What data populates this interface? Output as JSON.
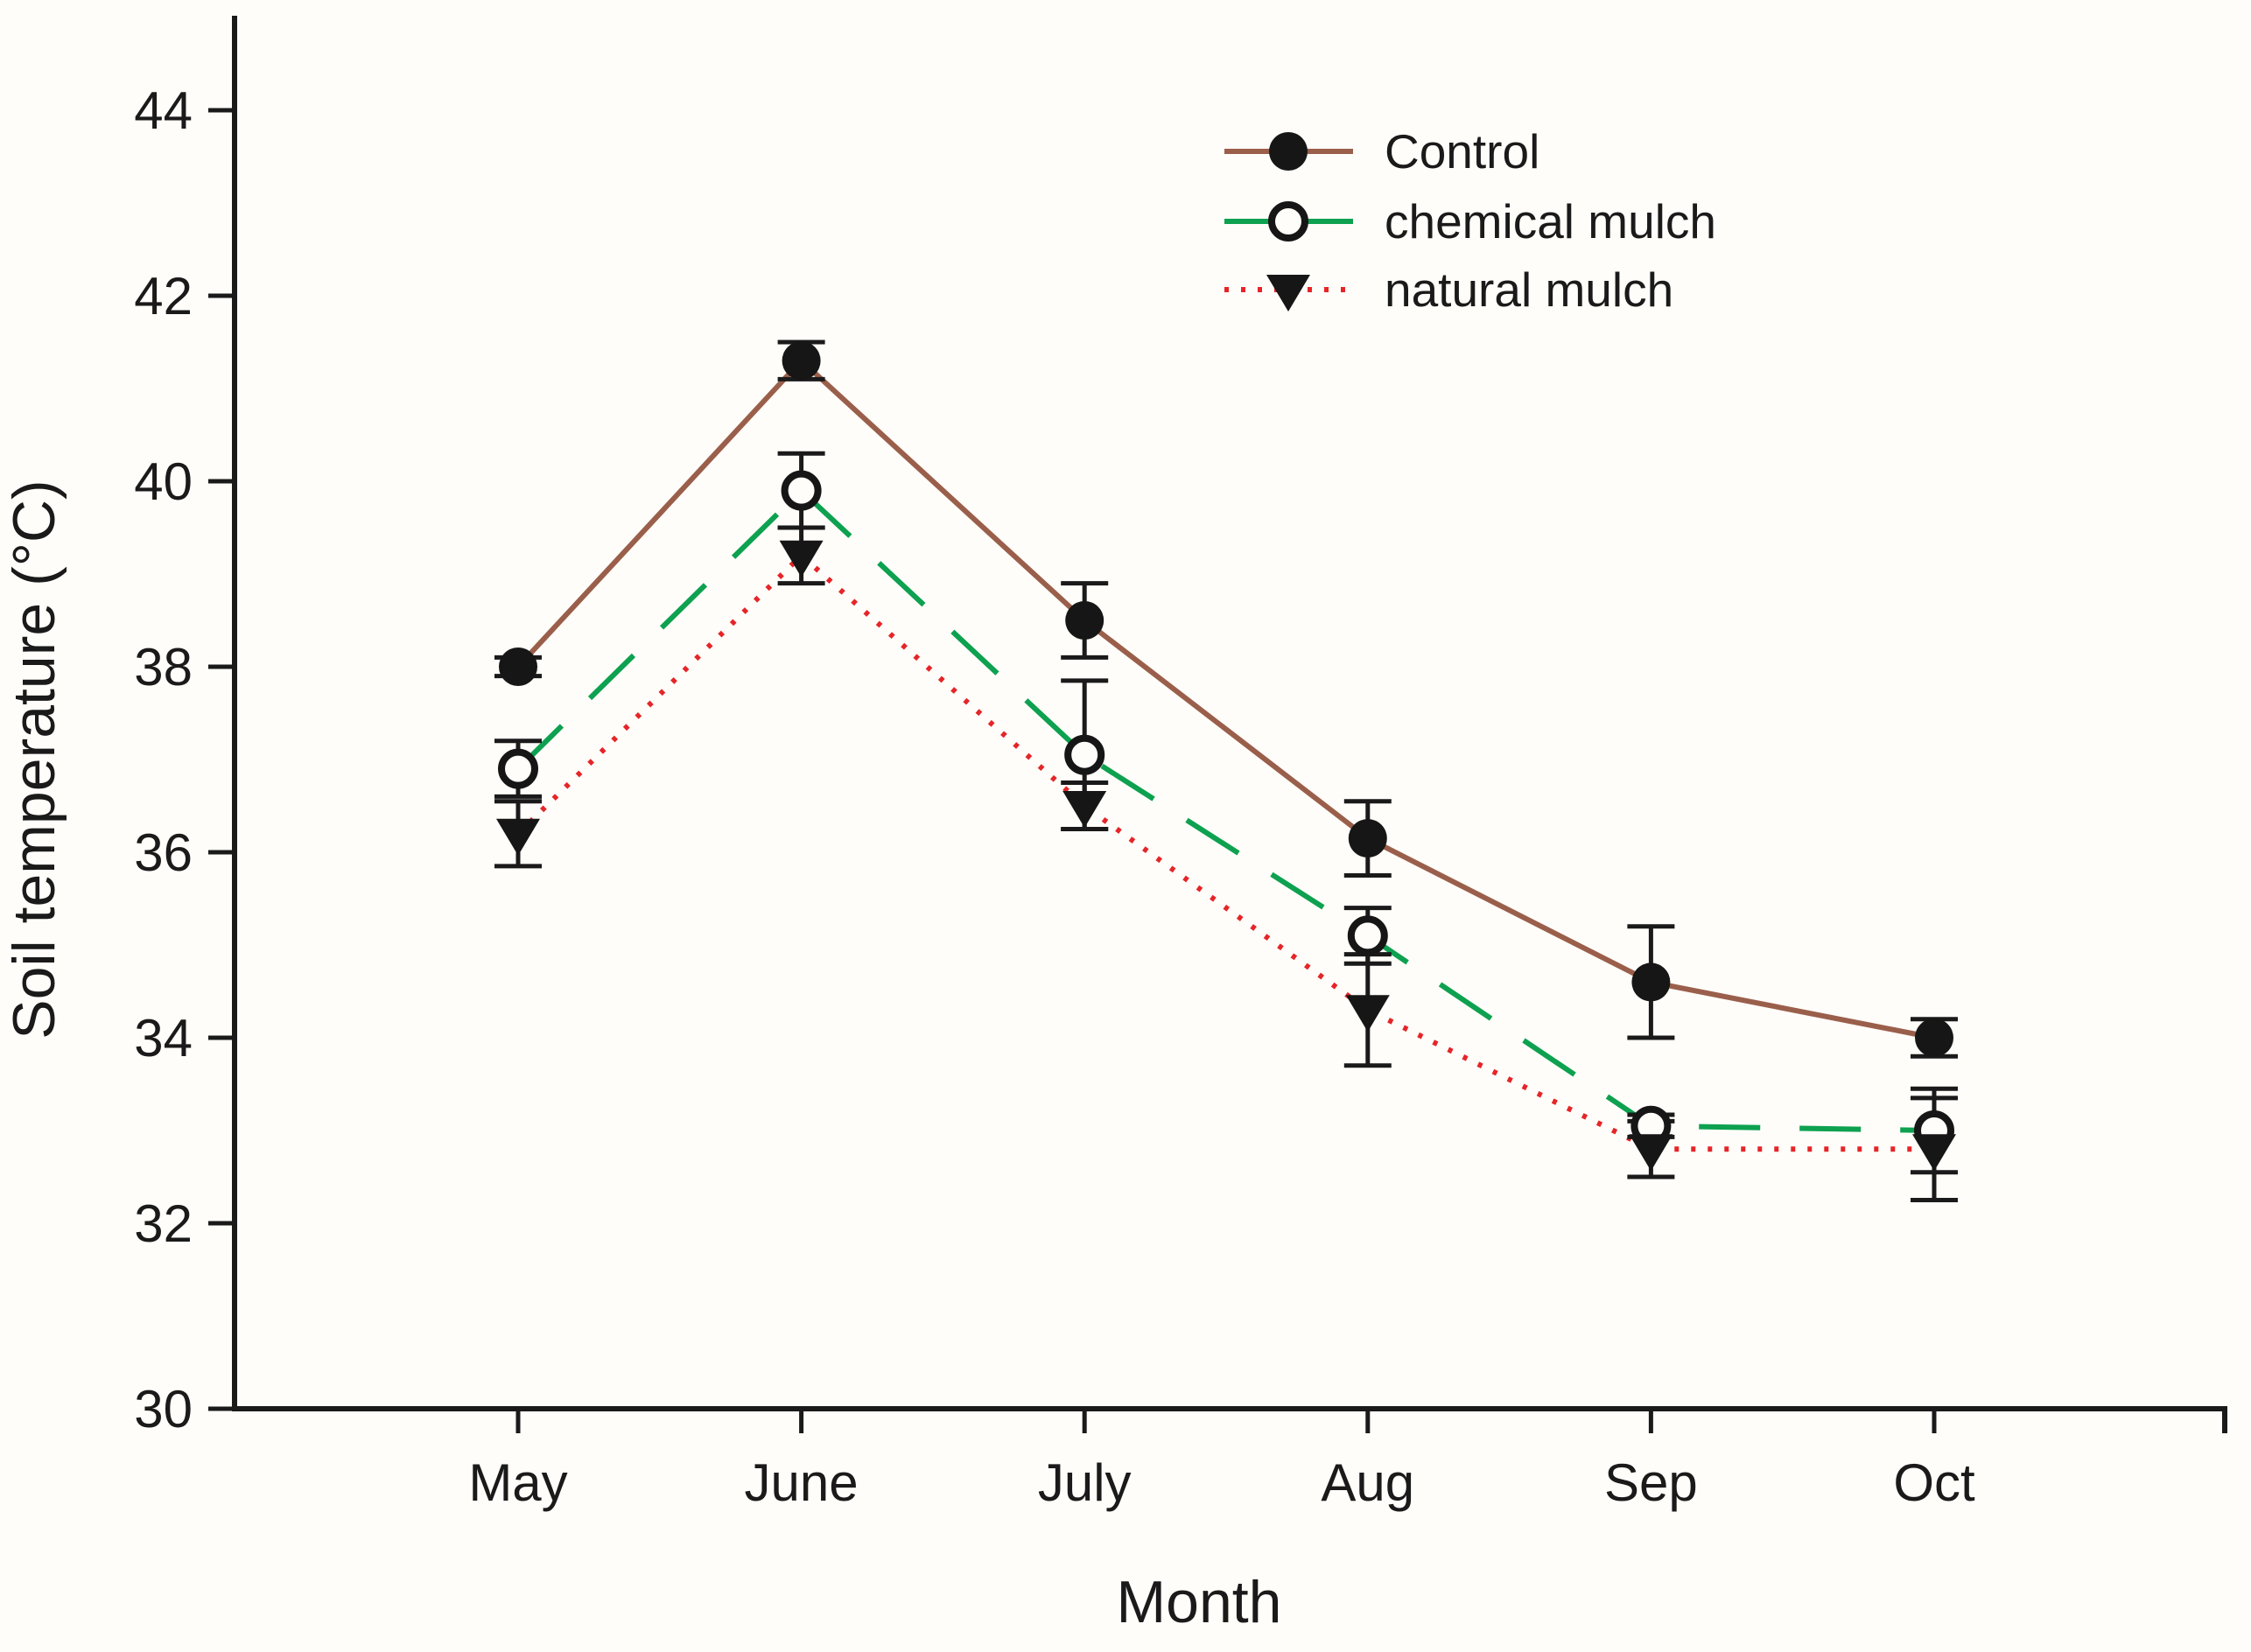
{
  "figure": {
    "background_color": "#fffdf9",
    "text_color": "#1a1a1a"
  },
  "chart_data": {
    "type": "line",
    "title": "",
    "xlabel": "Month",
    "ylabel": "Soil temperature (°C)",
    "categories": [
      "May",
      "June",
      "July",
      "Aug",
      "Sep",
      "Oct"
    ],
    "ylim": [
      30,
      45.2
    ],
    "yticks": [
      30,
      32,
      34,
      36,
      38,
      40,
      42,
      44
    ],
    "grid": false,
    "legend_position": "top-right-inside",
    "error_bars": true,
    "series": [
      {
        "name": "Control",
        "values": [
          38.0,
          41.3,
          38.5,
          36.15,
          34.6,
          34.0
        ],
        "errors": [
          0.1,
          0.2,
          0.4,
          0.4,
          0.6,
          0.2
        ],
        "line_color": "#9a5f4b",
        "line_style": "solid",
        "marker": "filled-circle",
        "marker_color": "#161616"
      },
      {
        "name": "chemical mulch",
        "values": [
          36.9,
          39.9,
          37.05,
          35.1,
          33.05,
          33.0
        ],
        "errors": [
          0.3,
          0.4,
          0.8,
          0.3,
          0.12,
          0.45
        ],
        "line_color": "#0da150",
        "line_style": "dashed",
        "marker": "open-circle",
        "marker_color": "#161616"
      },
      {
        "name": "natural mulch",
        "values": [
          36.2,
          39.2,
          36.5,
          34.3,
          32.8,
          32.8
        ],
        "errors": [
          0.35,
          0.3,
          0.25,
          0.6,
          0.3,
          0.55
        ],
        "line_color": "#e52528",
        "line_style": "dotted",
        "marker": "filled-triangle-down",
        "marker_color": "#161616"
      }
    ]
  }
}
